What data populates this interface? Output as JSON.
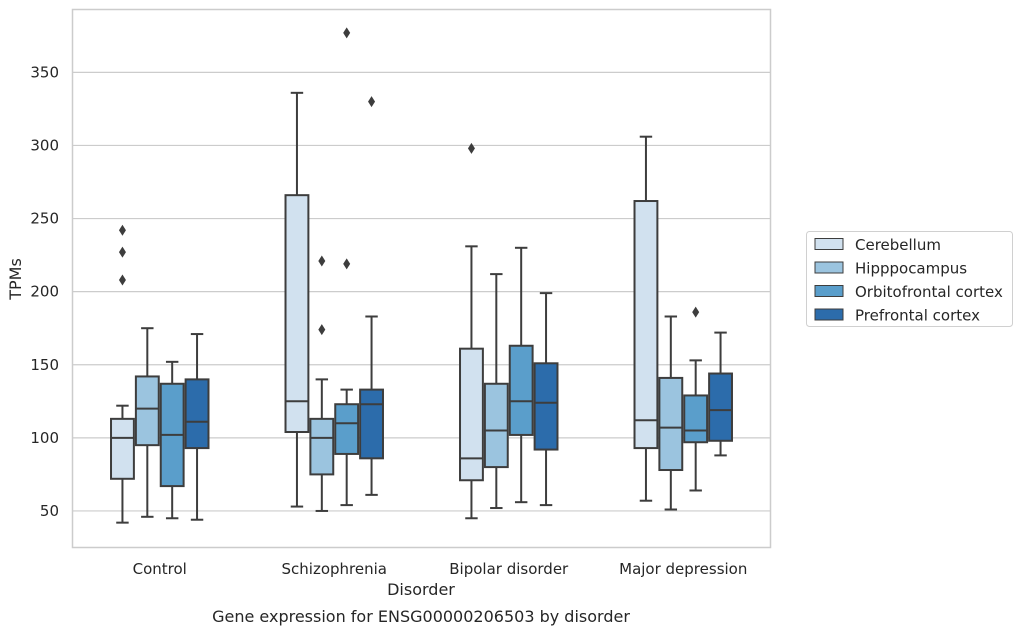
{
  "chart_data": {
    "type": "boxplot",
    "title": "",
    "caption": "Gene expression for ENSG00000206503 by disorder",
    "xlabel": "Disorder",
    "ylabel": "TPMs",
    "ylim": [
      25,
      393
    ],
    "yticks": [
      50,
      100,
      150,
      200,
      250,
      300,
      350
    ],
    "grid": "horizontal",
    "legend_placement": "center-right outside",
    "categories": [
      "Control",
      "Schizophrenia",
      "Bipolar disorder",
      "Major depression"
    ],
    "series": [
      {
        "name": "Cerebellum",
        "color": "#d1e1ef",
        "boxes": [
          {
            "whislo": 42,
            "q1": 72,
            "med": 100,
            "q3": 113,
            "whishi": 122,
            "fliers": [
              242,
              227,
              208
            ]
          },
          {
            "whislo": 53,
            "q1": 104,
            "med": 125,
            "q3": 266,
            "whishi": 336,
            "fliers": []
          },
          {
            "whislo": 45,
            "q1": 71,
            "med": 86,
            "q3": 161,
            "whishi": 231,
            "fliers": [
              298
            ]
          },
          {
            "whislo": 57,
            "q1": 93,
            "med": 112,
            "q3": 262,
            "whishi": 306,
            "fliers": []
          }
        ]
      },
      {
        "name": "Hipppocampus",
        "color": "#9bc4df",
        "boxes": [
          {
            "whislo": 46,
            "q1": 95,
            "med": 120,
            "q3": 142,
            "whishi": 175,
            "fliers": []
          },
          {
            "whislo": 50,
            "q1": 75,
            "med": 100,
            "q3": 113,
            "whishi": 140,
            "fliers": [
              221,
              174
            ]
          },
          {
            "whislo": 52,
            "q1": 80,
            "med": 105,
            "q3": 137,
            "whishi": 212,
            "fliers": []
          },
          {
            "whislo": 51,
            "q1": 78,
            "med": 107,
            "q3": 141,
            "whishi": 183,
            "fliers": []
          }
        ]
      },
      {
        "name": "Orbitofrontal cortex",
        "color": "#5a9ecb",
        "boxes": [
          {
            "whislo": 45,
            "q1": 67,
            "med": 102,
            "q3": 137,
            "whishi": 152,
            "fliers": []
          },
          {
            "whislo": 54,
            "q1": 89,
            "med": 110,
            "q3": 123,
            "whishi": 133,
            "fliers": [
              377,
              219
            ]
          },
          {
            "whislo": 56,
            "q1": 102,
            "med": 125,
            "q3": 163,
            "whishi": 230,
            "fliers": []
          },
          {
            "whislo": 64,
            "q1": 97,
            "med": 105,
            "q3": 129,
            "whishi": 153,
            "fliers": [
              186
            ]
          }
        ]
      },
      {
        "name": "Prefrontal cortex",
        "color": "#2c6cab",
        "boxes": [
          {
            "whislo": 44,
            "q1": 93,
            "med": 111,
            "q3": 140,
            "whishi": 171,
            "fliers": []
          },
          {
            "whislo": 61,
            "q1": 86,
            "med": 123,
            "q3": 133,
            "whishi": 183,
            "fliers": [
              330
            ]
          },
          {
            "whislo": 54,
            "q1": 92,
            "med": 124,
            "q3": 151,
            "whishi": 199,
            "fliers": []
          },
          {
            "whislo": 88,
            "q1": 98,
            "med": 119,
            "q3": 144,
            "whishi": 172,
            "fliers": []
          }
        ]
      }
    ]
  }
}
